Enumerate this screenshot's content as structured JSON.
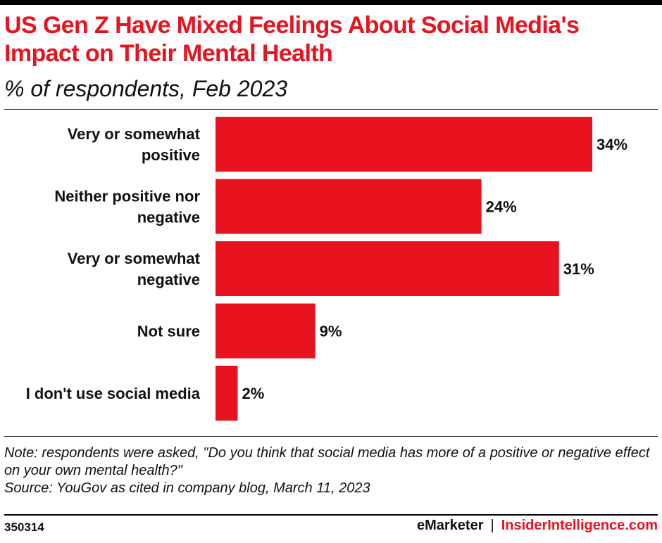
{
  "title": "US Gen Z Have Mixed Feelings About Social Media's Impact on Their Mental Health",
  "subtitle": "% of respondents, Feb 2023",
  "colors": {
    "bar": "#e8131f",
    "title": "#e8131f",
    "text": "#111111"
  },
  "chart_data": {
    "type": "bar",
    "orientation": "horizontal",
    "categories": [
      [
        "Very or somewhat",
        "positive"
      ],
      [
        "Neither positive nor",
        "negative"
      ],
      [
        "Very or somewhat",
        "negative"
      ],
      [
        "Not sure"
      ],
      [
        "I don't use social media"
      ]
    ],
    "values": [
      34,
      24,
      31,
      9,
      2
    ],
    "value_labels": [
      "34%",
      "24%",
      "31%",
      "9%",
      "2%"
    ],
    "unit": "%",
    "xlim": [
      0,
      34
    ],
    "grid": false,
    "legend": "none"
  },
  "note": "Note: respondents were asked, \"Do you think that social media has more of a positive or negative effect on your own mental health?\"",
  "source": "Source: YouGov as cited in company blog, March 11, 2023",
  "footer": {
    "chart_id": "350314",
    "brand_left": "eMarketer",
    "separator": "|",
    "brand_right": "InsiderIntelligence.com"
  }
}
